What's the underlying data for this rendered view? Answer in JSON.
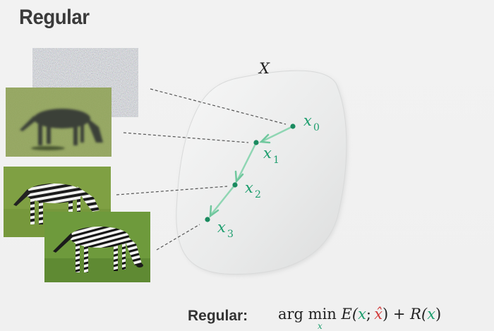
{
  "title": "Regular",
  "space_label": "X",
  "points": [
    {
      "name": "x",
      "sub": "0"
    },
    {
      "name": "x",
      "sub": "1"
    },
    {
      "name": "x",
      "sub": "2"
    },
    {
      "name": "x",
      "sub": "3"
    }
  ],
  "bottom": {
    "label": "Regular:",
    "formula": {
      "op": "arg min",
      "op_sub": "x",
      "e": "E(",
      "x": "x",
      "sep": ";",
      "xhat": "x̂",
      "close": ")",
      "plus": " + R(",
      "x2": "x",
      "end": ")"
    }
  },
  "colors": {
    "path": "#1e9e6e",
    "path_light": "#8fd6b3",
    "xhat": "#d23c3c",
    "blob": "#e7e8e7"
  },
  "images": [
    {
      "name": "noise-image"
    },
    {
      "name": "blurry-zebra-image"
    },
    {
      "name": "rough-zebra-image"
    },
    {
      "name": "clean-zebra-image"
    }
  ]
}
